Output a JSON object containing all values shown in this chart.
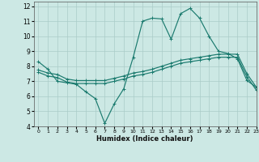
{
  "xlabel": "Humidex (Indice chaleur)",
  "xlim": [
    -0.5,
    23
  ],
  "ylim": [
    4,
    12.3
  ],
  "xticks": [
    0,
    1,
    2,
    3,
    4,
    5,
    6,
    7,
    8,
    9,
    10,
    11,
    12,
    13,
    14,
    15,
    16,
    17,
    18,
    19,
    20,
    21,
    22,
    23
  ],
  "yticks": [
    4,
    5,
    6,
    7,
    8,
    9,
    10,
    11,
    12
  ],
  "bg_color": "#cce8e4",
  "line_color": "#1a7a6e",
  "grid_color": "#aaccc8",
  "line1_x": [
    0,
    1,
    2,
    3,
    4,
    5,
    6,
    7,
    8,
    9,
    10,
    11,
    12,
    13,
    14,
    15,
    16,
    17,
    18,
    19,
    20,
    21,
    22,
    23
  ],
  "line1_y": [
    8.3,
    7.8,
    7.0,
    6.9,
    6.8,
    6.3,
    5.85,
    4.2,
    5.5,
    6.5,
    8.6,
    11.0,
    11.2,
    11.15,
    9.8,
    11.5,
    11.85,
    11.2,
    10.0,
    9.0,
    8.85,
    8.5,
    7.05,
    6.6
  ],
  "line2_x": [
    0,
    1,
    2,
    3,
    4,
    5,
    6,
    7,
    8,
    9,
    10,
    11,
    12,
    13,
    14,
    15,
    16,
    17,
    18,
    19,
    20,
    21,
    22,
    23
  ],
  "line2_y": [
    7.75,
    7.55,
    7.45,
    7.15,
    7.05,
    7.05,
    7.05,
    7.05,
    7.2,
    7.35,
    7.55,
    7.65,
    7.8,
    8.0,
    8.2,
    8.4,
    8.5,
    8.6,
    8.7,
    8.8,
    8.8,
    8.8,
    7.5,
    6.6
  ],
  "line3_x": [
    0,
    1,
    2,
    3,
    4,
    5,
    6,
    7,
    8,
    9,
    10,
    11,
    12,
    13,
    14,
    15,
    16,
    17,
    18,
    19,
    20,
    21,
    22,
    23
  ],
  "line3_y": [
    7.6,
    7.35,
    7.25,
    6.95,
    6.85,
    6.85,
    6.85,
    6.85,
    7.0,
    7.15,
    7.35,
    7.45,
    7.6,
    7.8,
    8.0,
    8.2,
    8.3,
    8.4,
    8.5,
    8.6,
    8.6,
    8.6,
    7.3,
    6.4
  ]
}
